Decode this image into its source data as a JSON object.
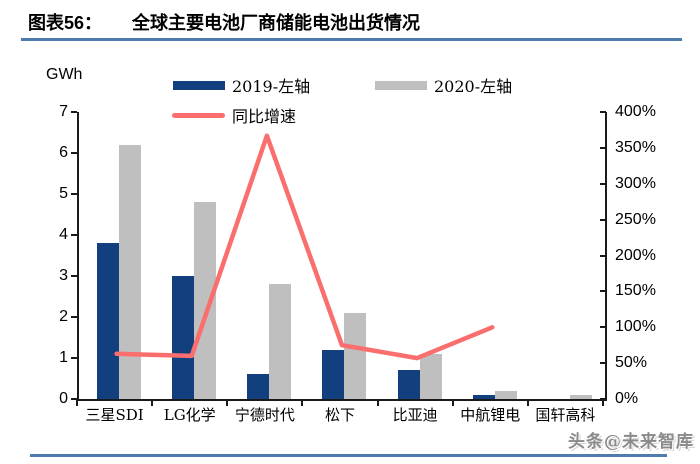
{
  "header": {
    "prefix": "图表56：",
    "title": "全球主要电池厂商储能电池出货情况"
  },
  "watermark": "头条@未来智库",
  "theme": {
    "bar_2019": "#12407e",
    "bar_2020": "#bfbfbf",
    "line_growth": "#fa6e6e",
    "rule_blue": "#4e7dad",
    "axis": "#1a1a1a"
  },
  "chart_data": {
    "type": "bar",
    "subtype": "grouped bars with secondary-axis line",
    "title": "全球主要电池厂商储能电池出货情况",
    "unit_label": "GWh",
    "categories": [
      "三星SDI",
      "LG化学",
      "宁德时代",
      "松下",
      "比亚迪",
      "中航锂电",
      "国轩高科"
    ],
    "series": [
      {
        "name": "2019-左轴",
        "type": "bar",
        "axis": "left",
        "color": "#12407e",
        "values": [
          3.8,
          3.0,
          0.6,
          1.2,
          0.7,
          0.1,
          null
        ]
      },
      {
        "name": "2020-左轴",
        "type": "bar",
        "axis": "left",
        "color": "#bfbfbf",
        "values": [
          6.2,
          4.8,
          2.8,
          2.1,
          1.1,
          0.2,
          0.1
        ]
      },
      {
        "name": "同比增速",
        "type": "line",
        "axis": "right",
        "color": "#fa6e6e",
        "unit": "%",
        "values": [
          63,
          60,
          367,
          75,
          57,
          100,
          null
        ]
      }
    ],
    "left_axis": {
      "label": "GWh",
      "min": 0,
      "max": 7,
      "step": 1,
      "ticks": [
        "7",
        "6",
        "5",
        "4",
        "3",
        "2",
        "1",
        "0"
      ]
    },
    "right_axis": {
      "min": 0,
      "max": 400,
      "step": 50,
      "format": "percent",
      "ticks": [
        "400%",
        "350%",
        "300%",
        "250%",
        "200%",
        "150%",
        "100%",
        "50%",
        "0%"
      ]
    },
    "grid": false,
    "legend_position": "top"
  }
}
